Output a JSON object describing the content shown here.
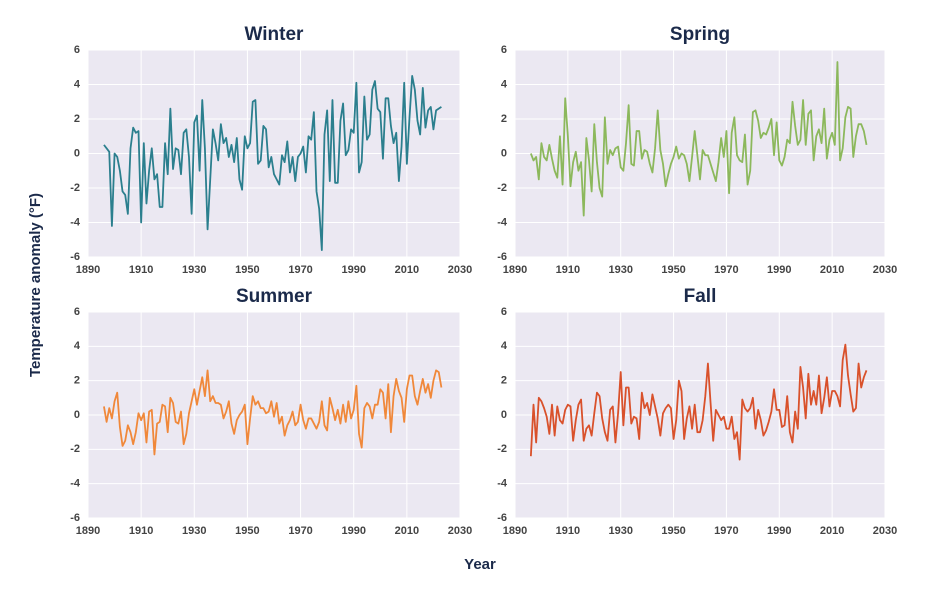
{
  "y_label": "Temperature anomaly (°F)",
  "x_label": "Year",
  "chart_data": [
    {
      "type": "line",
      "title": "Winter",
      "xlim": [
        1890,
        2030
      ],
      "xticks": [
        1890,
        1910,
        1930,
        1950,
        1970,
        1990,
        2010,
        2030
      ],
      "ylim": [
        -6,
        6
      ],
      "yticks": [
        -6,
        -4,
        -2,
        0,
        2,
        4,
        6
      ],
      "grid": true,
      "x": [
        1896,
        1897,
        1898,
        1899,
        1900,
        1901,
        1902,
        1903,
        1904,
        1905,
        1906,
        1907,
        1908,
        1909,
        1910,
        1911,
        1912,
        1913,
        1914,
        1915,
        1916,
        1917,
        1918,
        1919,
        1920,
        1921,
        1922,
        1923,
        1924,
        1925,
        1926,
        1927,
        1928,
        1929,
        1930,
        1931,
        1932,
        1933,
        1934,
        1935,
        1936,
        1937,
        1938,
        1939,
        1940,
        1941,
        1942,
        1943,
        1944,
        1945,
        1946,
        1947,
        1948,
        1949,
        1950,
        1951,
        1952,
        1953,
        1954,
        1955,
        1956,
        1957,
        1958,
        1959,
        1960,
        1961,
        1962,
        1963,
        1964,
        1965,
        1966,
        1967,
        1968,
        1969,
        1970,
        1971,
        1972,
        1973,
        1974,
        1975,
        1976,
        1977,
        1978,
        1979,
        1980,
        1981,
        1982,
        1983,
        1984,
        1985,
        1986,
        1987,
        1988,
        1989,
        1990,
        1991,
        1992,
        1993,
        1994,
        1995,
        1996,
        1997,
        1998,
        1999,
        2000,
        2001,
        2002,
        2003,
        2004,
        2005,
        2006,
        2007,
        2008,
        2009,
        2010,
        2011,
        2012,
        2013,
        2014,
        2015,
        2016,
        2017,
        2018,
        2019,
        2020,
        2021,
        2022,
        2023
      ],
      "series": [
        {
          "color": "#2b7f8e",
          "values": [
            0.5,
            0.3,
            0.1,
            -4.2,
            0.0,
            -0.2,
            -1.0,
            -2.2,
            -2.4,
            -3.5,
            0.3,
            1.5,
            1.2,
            1.3,
            -4.0,
            0.6,
            -2.9,
            -1.0,
            0.3,
            -1.5,
            -1.2,
            -3.1,
            -3.1,
            0.6,
            -1.2,
            2.6,
            -0.9,
            0.3,
            0.2,
            -1.2,
            1.2,
            1.4,
            -0.2,
            -3.5,
            1.8,
            2.2,
            -1.0,
            3.1,
            0.3,
            -4.4,
            -1.5,
            1.4,
            0.6,
            -0.4,
            1.7,
            0.6,
            0.9,
            -0.2,
            0.5,
            -0.5,
            0.9,
            -1.5,
            -2.1,
            1.0,
            0.3,
            0.6,
            3.0,
            3.1,
            -0.6,
            -0.4,
            1.6,
            1.4,
            -0.8,
            -0.2,
            -1.2,
            -1.5,
            -1.8,
            -0.1,
            -0.5,
            0.7,
            -1.1,
            -0.2,
            -1.6,
            -0.2,
            0.0,
            0.4,
            -1.1,
            1.0,
            0.8,
            2.4,
            -2.2,
            -3.2,
            -5.6,
            1.1,
            2.5,
            -1.6,
            3.1,
            -1.7,
            -1.7,
            1.9,
            2.9,
            -0.1,
            0.2,
            1.4,
            1.2,
            4.1,
            -1.1,
            -0.5,
            3.3,
            0.8,
            1.1,
            3.7,
            4.2,
            2.6,
            2.4,
            -0.3,
            3.2,
            3.2,
            1.6,
            0.6,
            1.2,
            -1.6,
            0.4,
            4.1,
            -0.6,
            2.1,
            4.5,
            3.7,
            1.9,
            1.1,
            3.8,
            1.5,
            2.5,
            2.7,
            1.4,
            2.5,
            2.6,
            2.7
          ]
        }
      ]
    },
    {
      "type": "line",
      "title": "Spring",
      "xlim": [
        1890,
        2030
      ],
      "xticks": [
        1890,
        1910,
        1930,
        1950,
        1970,
        1990,
        2010,
        2030
      ],
      "ylim": [
        -6,
        6
      ],
      "yticks": [
        -6,
        -4,
        -2,
        0,
        2,
        4,
        6
      ],
      "grid": true,
      "x": [
        1896,
        1897,
        1898,
        1899,
        1900,
        1901,
        1902,
        1903,
        1904,
        1905,
        1906,
        1907,
        1908,
        1909,
        1910,
        1911,
        1912,
        1913,
        1914,
        1915,
        1916,
        1917,
        1918,
        1919,
        1920,
        1921,
        1922,
        1923,
        1924,
        1925,
        1926,
        1927,
        1928,
        1929,
        1930,
        1931,
        1932,
        1933,
        1934,
        1935,
        1936,
        1937,
        1938,
        1939,
        1940,
        1941,
        1942,
        1943,
        1944,
        1945,
        1946,
        1947,
        1948,
        1949,
        1950,
        1951,
        1952,
        1953,
        1954,
        1955,
        1956,
        1957,
        1958,
        1959,
        1960,
        1961,
        1962,
        1963,
        1964,
        1965,
        1966,
        1967,
        1968,
        1969,
        1970,
        1971,
        1972,
        1973,
        1974,
        1975,
        1976,
        1977,
        1978,
        1979,
        1980,
        1981,
        1982,
        1983,
        1984,
        1985,
        1986,
        1987,
        1988,
        1989,
        1990,
        1991,
        1992,
        1993,
        1994,
        1995,
        1996,
        1997,
        1998,
        1999,
        2000,
        2001,
        2002,
        2003,
        2004,
        2005,
        2006,
        2007,
        2008,
        2009,
        2010,
        2011,
        2012,
        2013,
        2014,
        2015,
        2016,
        2017,
        2018,
        2019,
        2020,
        2021,
        2022,
        2023
      ],
      "series": [
        {
          "color": "#8cb85c",
          "values": [
            0.0,
            -0.4,
            -0.2,
            -1.5,
            0.6,
            -0.2,
            -0.4,
            0.5,
            -0.3,
            -1.0,
            -1.4,
            1.0,
            -1.8,
            3.2,
            1.0,
            -1.9,
            -0.5,
            0.1,
            -1.0,
            -0.5,
            -3.6,
            0.9,
            -0.4,
            -2.2,
            1.7,
            -0.5,
            -2.0,
            -2.5,
            2.1,
            -0.6,
            0.2,
            -0.1,
            0.3,
            0.4,
            -0.8,
            -1.0,
            0.6,
            2.8,
            -0.6,
            -0.7,
            1.3,
            1.3,
            -0.3,
            0.2,
            0.1,
            -0.6,
            -1.1,
            0.3,
            2.5,
            0.2,
            -0.6,
            -1.9,
            -1.2,
            -0.6,
            -0.2,
            0.4,
            -0.3,
            0.0,
            -0.1,
            -0.6,
            -1.6,
            -0.2,
            1.3,
            -0.1,
            -1.5,
            0.2,
            -0.1,
            -0.1,
            -0.6,
            -1.1,
            -1.6,
            -0.5,
            0.9,
            -0.2,
            1.3,
            -2.3,
            1.2,
            2.1,
            -0.1,
            -0.4,
            -0.5,
            1.1,
            -1.8,
            -1.0,
            2.4,
            2.5,
            1.9,
            0.9,
            1.2,
            1.1,
            1.5,
            2.0,
            -0.1,
            1.8,
            -0.4,
            -0.7,
            -0.2,
            0.8,
            0.6,
            3.0,
            1.6,
            0.5,
            0.8,
            3.1,
            0.5,
            2.3,
            2.5,
            -0.4,
            1.0,
            1.4,
            0.6,
            2.6,
            -0.3,
            0.8,
            1.2,
            0.5,
            5.3,
            -0.4,
            0.3,
            2.1,
            2.7,
            2.6,
            -0.2,
            1.0,
            1.7,
            1.7,
            1.3,
            0.5
          ]
        }
      ]
    },
    {
      "type": "line",
      "title": "Summer",
      "xlim": [
        1890,
        2030
      ],
      "xticks": [
        1890,
        1910,
        1930,
        1950,
        1970,
        1990,
        2010,
        2030
      ],
      "ylim": [
        -6,
        6
      ],
      "yticks": [
        -6,
        -4,
        -2,
        0,
        2,
        4,
        6
      ],
      "grid": true,
      "x": [
        1896,
        1897,
        1898,
        1899,
        1900,
        1901,
        1902,
        1903,
        1904,
        1905,
        1906,
        1907,
        1908,
        1909,
        1910,
        1911,
        1912,
        1913,
        1914,
        1915,
        1916,
        1917,
        1918,
        1919,
        1920,
        1921,
        1922,
        1923,
        1924,
        1925,
        1926,
        1927,
        1928,
        1929,
        1930,
        1931,
        1932,
        1933,
        1934,
        1935,
        1936,
        1937,
        1938,
        1939,
        1940,
        1941,
        1942,
        1943,
        1944,
        1945,
        1946,
        1947,
        1948,
        1949,
        1950,
        1951,
        1952,
        1953,
        1954,
        1955,
        1956,
        1957,
        1958,
        1959,
        1960,
        1961,
        1962,
        1963,
        1964,
        1965,
        1966,
        1967,
        1968,
        1969,
        1970,
        1971,
        1972,
        1973,
        1974,
        1975,
        1976,
        1977,
        1978,
        1979,
        1980,
        1981,
        1982,
        1983,
        1984,
        1985,
        1986,
        1987,
        1988,
        1989,
        1990,
        1991,
        1992,
        1993,
        1994,
        1995,
        1996,
        1997,
        1998,
        1999,
        2000,
        2001,
        2002,
        2003,
        2004,
        2005,
        2006,
        2007,
        2008,
        2009,
        2010,
        2011,
        2012,
        2013,
        2014,
        2015,
        2016,
        2017,
        2018,
        2019,
        2020,
        2021,
        2022,
        2023
      ],
      "series": [
        {
          "color": "#f0883a",
          "values": [
            0.5,
            -0.4,
            0.4,
            -0.2,
            0.8,
            1.3,
            -0.7,
            -1.8,
            -1.5,
            -0.6,
            -1.0,
            -1.7,
            -1.0,
            0.1,
            -0.3,
            0.1,
            -1.6,
            0.2,
            0.3,
            -2.3,
            -0.5,
            -0.4,
            0.6,
            0.5,
            -1.0,
            1.0,
            0.7,
            -0.4,
            -0.5,
            0.2,
            -1.7,
            -1.1,
            0.1,
            0.8,
            1.5,
            0.6,
            1.4,
            2.2,
            1.1,
            2.6,
            0.8,
            1.1,
            0.7,
            0.7,
            0.6,
            -0.2,
            0.2,
            0.8,
            -0.5,
            -1.1,
            -0.3,
            0.0,
            0.2,
            0.6,
            -1.7,
            -0.2,
            1.1,
            0.6,
            0.8,
            0.4,
            0.4,
            0.1,
            0.2,
            0.8,
            -0.1,
            0.7,
            -0.5,
            -0.1,
            -1.2,
            -0.6,
            -0.3,
            0.2,
            -0.6,
            -0.4,
            0.6,
            -0.3,
            -0.8,
            -0.2,
            -0.2,
            -0.5,
            -0.8,
            -0.4,
            0.8,
            -0.6,
            -0.9,
            1.0,
            0.4,
            -0.3,
            0.3,
            -0.5,
            0.6,
            -0.4,
            0.8,
            -0.2,
            0.3,
            1.7,
            -1.1,
            -1.9,
            0.4,
            0.7,
            0.5,
            -0.2,
            0.6,
            0.6,
            1.5,
            1.3,
            -0.2,
            1.8,
            -1.0,
            1.1,
            2.1,
            1.4,
            1.0,
            -0.4,
            1.5,
            2.3,
            2.3,
            1.1,
            0.6,
            1.4,
            2.1,
            1.3,
            1.8,
            1.0,
            2.0,
            2.6,
            2.5,
            1.6
          ]
        }
      ]
    },
    {
      "type": "line",
      "title": "Fall",
      "xlim": [
        1890,
        2030
      ],
      "xticks": [
        1890,
        1910,
        1930,
        1950,
        1970,
        1990,
        2010,
        2030
      ],
      "ylim": [
        -6,
        6
      ],
      "yticks": [
        -6,
        -4,
        -2,
        0,
        2,
        4,
        6
      ],
      "grid": true,
      "x": [
        1896,
        1897,
        1898,
        1899,
        1900,
        1901,
        1902,
        1903,
        1904,
        1905,
        1906,
        1907,
        1908,
        1909,
        1910,
        1911,
        1912,
        1913,
        1914,
        1915,
        1916,
        1917,
        1918,
        1919,
        1920,
        1921,
        1922,
        1923,
        1924,
        1925,
        1926,
        1927,
        1928,
        1929,
        1930,
        1931,
        1932,
        1933,
        1934,
        1935,
        1936,
        1937,
        1938,
        1939,
        1940,
        1941,
        1942,
        1943,
        1944,
        1945,
        1946,
        1947,
        1948,
        1949,
        1950,
        1951,
        1952,
        1953,
        1954,
        1955,
        1956,
        1957,
        1958,
        1959,
        1960,
        1961,
        1962,
        1963,
        1964,
        1965,
        1966,
        1967,
        1968,
        1969,
        1970,
        1971,
        1972,
        1973,
        1974,
        1975,
        1976,
        1977,
        1978,
        1979,
        1980,
        1981,
        1982,
        1983,
        1984,
        1985,
        1986,
        1987,
        1988,
        1989,
        1990,
        1991,
        1992,
        1993,
        1994,
        1995,
        1996,
        1997,
        1998,
        1999,
        2000,
        2001,
        2002,
        2003,
        2004,
        2005,
        2006,
        2007,
        2008,
        2009,
        2010,
        2011,
        2012,
        2013,
        2014,
        2015,
        2016,
        2017,
        2018,
        2019,
        2020,
        2021,
        2022,
        2023
      ],
      "series": [
        {
          "color": "#d9512b",
          "values": [
            -2.4,
            0.6,
            -1.6,
            1.0,
            0.8,
            0.4,
            -0.1,
            -1.1,
            0.6,
            -1.2,
            0.5,
            -0.3,
            -0.5,
            0.3,
            0.6,
            0.5,
            -1.5,
            -0.3,
            0.6,
            0.9,
            -1.5,
            -0.8,
            -0.6,
            -1.2,
            0.1,
            1.3,
            1.1,
            -0.2,
            -1.0,
            -1.5,
            0.3,
            0.5,
            -1.6,
            0.1,
            2.5,
            -0.6,
            1.6,
            1.6,
            -0.5,
            -0.1,
            -0.2,
            -1.4,
            1.3,
            0.4,
            0.7,
            0.0,
            1.2,
            0.5,
            -0.2,
            -1.2,
            0.1,
            0.4,
            0.6,
            0.4,
            -1.4,
            -0.3,
            2.0,
            1.4,
            -1.4,
            -0.2,
            0.5,
            -0.8,
            0.6,
            -1.0,
            -1.0,
            -0.3,
            1.1,
            3.0,
            0.7,
            -1.5,
            0.3,
            0.0,
            -0.3,
            -0.1,
            -0.8,
            -0.8,
            -0.1,
            -1.4,
            -1.0,
            -2.6,
            0.9,
            0.4,
            0.2,
            0.4,
            1.0,
            -0.8,
            0.3,
            -0.3,
            -1.2,
            -0.9,
            -0.4,
            0.2,
            1.5,
            0.3,
            0.3,
            -0.7,
            -0.6,
            1.1,
            -1.0,
            -1.6,
            0.2,
            -0.8,
            2.8,
            1.6,
            -0.2,
            2.4,
            0.6,
            1.4,
            0.6,
            2.3,
            0.1,
            1.0,
            2.2,
            0.5,
            1.4,
            1.4,
            1.1,
            0.5,
            3.2,
            4.1,
            2.3,
            1.2,
            0.2,
            0.4,
            3.0,
            1.6,
            2.2,
            2.6
          ]
        }
      ]
    }
  ]
}
